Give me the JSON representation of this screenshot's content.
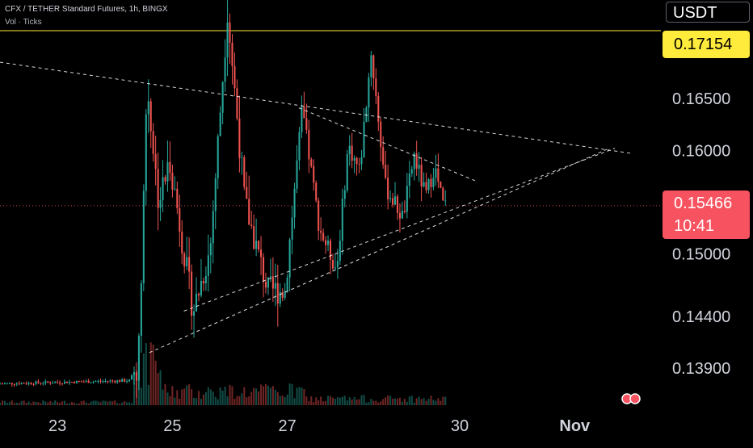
{
  "header": {
    "title": "CFX / TETHER Standard Futures, 1h, BINGX",
    "indicator": "Vol · Ticks"
  },
  "currency": "USDT",
  "price_tags": {
    "level": "0.17154",
    "last_price": "0.15466",
    "countdown": "10:41"
  },
  "colors": {
    "background": "#000000",
    "up": "#26a69a",
    "down": "#ef5350",
    "level_line": "#ffeb3b",
    "last_price_tag": "#f7525f",
    "trendline": "#ffffff"
  },
  "chart_data": {
    "type": "candlestick",
    "symbol": "CFX / TETHER Standard Futures",
    "interval": "1h",
    "exchange": "BINGX",
    "y_axis_ticks": [
      0.165,
      0.16,
      0.15,
      0.144,
      0.139
    ],
    "y_axis_tick_labels": [
      "0.16500",
      "0.16000",
      "0.15000",
      "0.14400",
      "0.13900"
    ],
    "ylim": [
      0.1348,
      0.1745
    ],
    "x_axis_ticks": [
      {
        "label": "23",
        "day": 23
      },
      {
        "label": "25",
        "day": 25
      },
      {
        "label": "27",
        "day": 27
      },
      {
        "label": "30",
        "day": 30
      },
      {
        "label": "Nov",
        "day": 32
      }
    ],
    "xlim_days": [
      22.0,
      33.5
    ],
    "horizontal_level": 0.17154,
    "last_price": 0.15466,
    "price_path": [
      {
        "day": 22.0,
        "price": 0.1375
      },
      {
        "day": 24.3,
        "price": 0.1378
      },
      {
        "day": 24.45,
        "price": 0.1395
      },
      {
        "day": 24.6,
        "price": 0.1665
      },
      {
        "day": 24.8,
        "price": 0.155
      },
      {
        "day": 25.0,
        "price": 0.159
      },
      {
        "day": 25.4,
        "price": 0.1445
      },
      {
        "day": 25.7,
        "price": 0.1505
      },
      {
        "day": 26.0,
        "price": 0.1735
      },
      {
        "day": 26.3,
        "price": 0.155
      },
      {
        "day": 26.7,
        "price": 0.1465
      },
      {
        "day": 27.0,
        "price": 0.1465
      },
      {
        "day": 27.3,
        "price": 0.164
      },
      {
        "day": 27.6,
        "price": 0.1525
      },
      {
        "day": 27.9,
        "price": 0.1485
      },
      {
        "day": 28.1,
        "price": 0.1605
      },
      {
        "day": 28.3,
        "price": 0.158
      },
      {
        "day": 28.5,
        "price": 0.1695
      },
      {
        "day": 28.75,
        "price": 0.1565
      },
      {
        "day": 29.05,
        "price": 0.1535
      },
      {
        "day": 29.25,
        "price": 0.1595
      },
      {
        "day": 29.45,
        "price": 0.1555
      },
      {
        "day": 29.6,
        "price": 0.1585
      },
      {
        "day": 29.75,
        "price": 0.1547
      }
    ],
    "trendlines": [
      {
        "style": "dashed",
        "from": {
          "day": 22.0,
          "price": 0.1685
        },
        "to": {
          "day": 33.0,
          "price": 0.1597
        }
      },
      {
        "style": "dashed",
        "from": {
          "day": 27.2,
          "price": 0.1641
        },
        "to": {
          "day": 30.3,
          "price": 0.157
        }
      },
      {
        "style": "dashed",
        "from": {
          "day": 25.2,
          "price": 0.1445
        },
        "to": {
          "day": 32.7,
          "price": 0.1602
        }
      },
      {
        "style": "dashed",
        "from": {
          "day": 24.6,
          "price": 0.1405
        },
        "to": {
          "day": 32.6,
          "price": 0.1602
        }
      }
    ],
    "volume_profile": "low baseline with a large spike near day 24.5 and elevated activity through day 27",
    "grid": false,
    "legend": "top-left"
  }
}
